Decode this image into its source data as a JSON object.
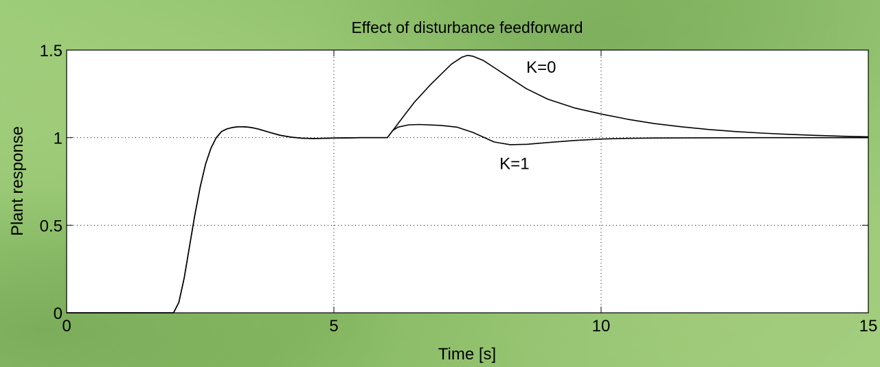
{
  "chart_data": {
    "type": "line",
    "title": "Effect of disturbance feedforward",
    "xlabel": "Time [s]",
    "ylabel": "Plant response",
    "xlim": [
      0,
      15
    ],
    "ylim": [
      0,
      1.5
    ],
    "xticks": [
      0,
      5,
      10,
      15
    ],
    "yticks": [
      0,
      0.5,
      1,
      1.5
    ],
    "xtick_labels": [
      "0",
      "5",
      "10",
      "15"
    ],
    "ytick_labels": [
      "0",
      "0.5",
      "1",
      "1.5"
    ],
    "grid": true,
    "series": [
      {
        "name": "K=0",
        "color": "#000000",
        "x": [
          0,
          2,
          2.1,
          2.2,
          2.3,
          2.4,
          2.5,
          2.6,
          2.7,
          2.8,
          2.9,
          3.0,
          3.1,
          3.2,
          3.3,
          3.4,
          3.5,
          3.6,
          3.8,
          4.0,
          4.2,
          4.4,
          4.6,
          4.8,
          5.0,
          5.5,
          6.0,
          6.1,
          6.3,
          6.5,
          6.8,
          7.0,
          7.2,
          7.4,
          7.5,
          7.6,
          7.8,
          8.0,
          8.3,
          8.6,
          9.0,
          9.5,
          10.0,
          10.5,
          11.0,
          11.5,
          12.0,
          12.5,
          13.0,
          13.5,
          14.0,
          14.5,
          15.0
        ],
        "y": [
          0,
          0,
          0.06,
          0.2,
          0.38,
          0.56,
          0.72,
          0.85,
          0.94,
          1.0,
          1.035,
          1.05,
          1.058,
          1.062,
          1.062,
          1.06,
          1.055,
          1.048,
          1.03,
          1.013,
          1.003,
          0.997,
          0.995,
          0.996,
          0.998,
          1.0,
          1.0,
          1.04,
          1.12,
          1.2,
          1.3,
          1.36,
          1.42,
          1.46,
          1.47,
          1.465,
          1.44,
          1.4,
          1.34,
          1.28,
          1.22,
          1.17,
          1.135,
          1.105,
          1.08,
          1.062,
          1.047,
          1.035,
          1.026,
          1.019,
          1.013,
          1.008,
          1.005
        ]
      },
      {
        "name": "K=1",
        "color": "#000000",
        "x": [
          0,
          2,
          2.1,
          2.2,
          2.3,
          2.4,
          2.5,
          2.6,
          2.7,
          2.8,
          2.9,
          3.0,
          3.1,
          3.2,
          3.3,
          3.4,
          3.5,
          3.6,
          3.8,
          4.0,
          4.2,
          4.4,
          4.6,
          4.8,
          5.0,
          5.5,
          6.0,
          6.1,
          6.2,
          6.4,
          6.6,
          7.0,
          7.3,
          7.6,
          8.0,
          8.3,
          8.6,
          9.0,
          9.5,
          10.0,
          10.5,
          11.0,
          12.0,
          13.0,
          14.0,
          15.0
        ],
        "y": [
          0,
          0,
          0.06,
          0.2,
          0.38,
          0.56,
          0.72,
          0.85,
          0.94,
          1.0,
          1.035,
          1.05,
          1.058,
          1.062,
          1.062,
          1.06,
          1.055,
          1.048,
          1.03,
          1.013,
          1.003,
          0.997,
          0.995,
          0.996,
          0.998,
          1.0,
          1.0,
          1.04,
          1.06,
          1.073,
          1.075,
          1.07,
          1.06,
          1.03,
          0.975,
          0.96,
          0.962,
          0.972,
          0.984,
          0.992,
          0.996,
          0.998,
          0.999,
          1.0,
          1.0,
          1.0
        ]
      }
    ],
    "annotations": [
      {
        "text": "K=0",
        "x": 8.6,
        "y": 1.37
      },
      {
        "text": "K=1",
        "x": 8.1,
        "y": 0.82
      }
    ]
  }
}
